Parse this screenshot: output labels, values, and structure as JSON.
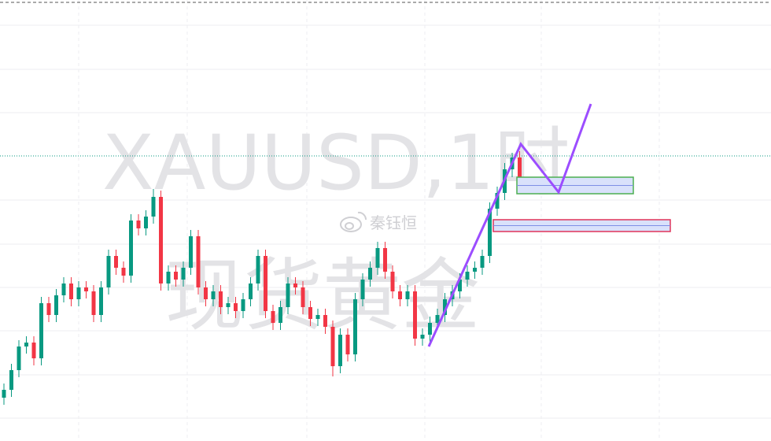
{
  "chart_data": {
    "type": "candlestick",
    "title": "XAUUSD,1时",
    "subtitle": "现货黄金",
    "watermark": "秦钰恒",
    "up_color": "#089981",
    "down_color": "#f23645",
    "ylim": [
      0,
      560
    ],
    "open": [
      55,
      65,
      90,
      120,
      125,
      105,
      175,
      160,
      185,
      200,
      180,
      195,
      190,
      160,
      195,
      235,
      220,
      210,
      280,
      270,
      285,
      310,
      200,
      215,
      205,
      220,
      260,
      195,
      180,
      190,
      170,
      175,
      165,
      180,
      200,
      235,
      165,
      150,
      170,
      200,
      195,
      170,
      155,
      160,
      145,
      95,
      135,
      110,
      180,
      205,
      220,
      245,
      215,
      190,
      180,
      190,
      130,
      135,
      150,
      160,
      180,
      190,
      205,
      215,
      220,
      235,
      295,
      315,
      345,
      360
    ],
    "high": [
      73,
      98,
      128,
      133,
      133,
      183,
      183,
      193,
      208,
      208,
      203,
      203,
      198,
      203,
      243,
      243,
      228,
      288,
      288,
      293,
      320,
      318,
      223,
      223,
      228,
      268,
      268,
      203,
      198,
      198,
      183,
      183,
      188,
      208,
      243,
      243,
      173,
      178,
      208,
      208,
      203,
      178,
      168,
      168,
      153,
      143,
      143,
      188,
      213,
      228,
      253,
      253,
      223,
      198,
      198,
      198,
      143,
      158,
      168,
      188,
      198,
      213,
      223,
      228,
      243,
      303,
      323,
      353,
      366,
      368
    ],
    "low": [
      46,
      56,
      81,
      111,
      96,
      96,
      151,
      151,
      176,
      171,
      171,
      181,
      151,
      151,
      186,
      211,
      201,
      201,
      261,
      261,
      276,
      191,
      191,
      196,
      196,
      211,
      186,
      171,
      171,
      161,
      161,
      156,
      156,
      171,
      191,
      156,
      141,
      141,
      161,
      186,
      161,
      146,
      146,
      136,
      82,
      86,
      101,
      101,
      171,
      196,
      211,
      206,
      181,
      171,
      171,
      121,
      121,
      126,
      141,
      151,
      171,
      181,
      196,
      206,
      211,
      226,
      286,
      306,
      335,
      316
    ],
    "close": [
      65,
      90,
      120,
      125,
      105,
      175,
      160,
      185,
      200,
      180,
      195,
      190,
      160,
      195,
      235,
      220,
      210,
      280,
      270,
      285,
      310,
      200,
      215,
      205,
      220,
      260,
      195,
      180,
      190,
      170,
      175,
      165,
      180,
      200,
      235,
      165,
      150,
      170,
      200,
      195,
      170,
      155,
      160,
      145,
      95,
      135,
      110,
      180,
      205,
      220,
      245,
      215,
      190,
      180,
      190,
      130,
      135,
      150,
      160,
      180,
      190,
      205,
      215,
      220,
      235,
      295,
      315,
      345,
      360,
      325
    ]
  }
}
